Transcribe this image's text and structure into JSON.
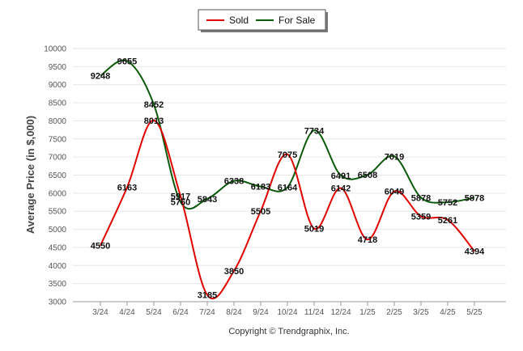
{
  "chart_data": {
    "type": "line",
    "ylabel": "Average Price (in $,000)",
    "xlabel": "",
    "ylim": [
      3000,
      10000
    ],
    "yticks": [
      3000,
      3500,
      4000,
      4500,
      5000,
      5500,
      6000,
      6500,
      7000,
      7500,
      8000,
      8500,
      9000,
      9500,
      10000
    ],
    "categories": [
      "3/24",
      "4/24",
      "5/24",
      "6/24",
      "7/24",
      "8/24",
      "9/24",
      "10/24",
      "11/24",
      "12/24",
      "1/25",
      "2/25",
      "3/25",
      "4/25",
      "5/25"
    ],
    "series": [
      {
        "name": "Sold",
        "color": "#e00000",
        "values": [
          4550,
          6163,
          8013,
          5917,
          3185,
          3850,
          5505,
          7075,
          5019,
          6142,
          4718,
          6049,
          5359,
          5261,
          4394
        ]
      },
      {
        "name": "For Sale",
        "color": "#0a5a0a",
        "values": [
          9248,
          9655,
          8452,
          5760,
          5843,
          6338,
          6183,
          6164,
          7734,
          6491,
          6508,
          7019,
          5878,
          5752,
          5878
        ]
      }
    ],
    "legend_position": "top-center",
    "grid": true,
    "credit": "Copyright © Trendgraphix, Inc."
  }
}
